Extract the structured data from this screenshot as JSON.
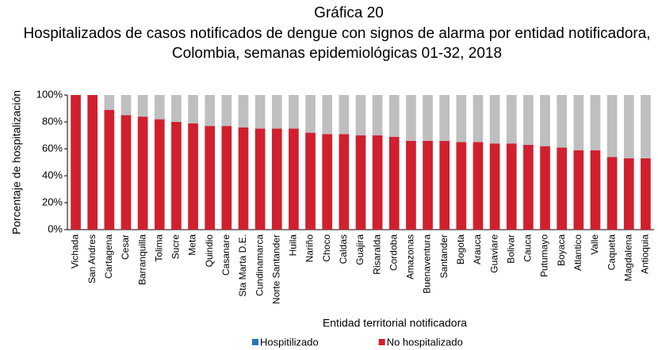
{
  "chart_data": {
    "type": "stacked_bar",
    "title": "Gráfica 20",
    "subtitle": "Hospitalizados de casos notificados de dengue con signos de alarma por entidad notificadora, Colombia, semanas epidemiológicas 01-32, 2018",
    "x_label": "Entidad territorial notificadora",
    "y_label": "Porcentaje de hospitalización",
    "categories": [
      "Vichada",
      "San Andres",
      "Cartagena",
      "Cesar",
      "Barranquilla",
      "Tolima",
      "Sucre",
      "Meta",
      "Quindio",
      "Casanare",
      "Sta Marta D.E.",
      "Cundinamarca",
      "Norte Santander",
      "Huila",
      "Nariño",
      "Choco",
      "Caldas",
      "Guajira",
      "Risaralda",
      "Cordoba",
      "Amazonas",
      "Buenaventura",
      "Santander",
      "Bogota",
      "Arauca",
      "Guaviare",
      "Bolivar",
      "Cauca",
      "Putumayo",
      "Boyaca",
      "Atlantico",
      "Valle",
      "Caqueta",
      "Magdalena",
      "Antioquia"
    ],
    "series": [
      {
        "name": "Hospitilizado",
        "color": "#bfbfbf",
        "legend_color": "#2e75b6",
        "values": [
          0,
          0,
          11,
          15,
          16,
          18,
          20,
          21,
          23,
          23,
          24,
          25,
          25,
          25,
          28,
          29,
          29,
          30,
          30,
          31,
          34,
          34,
          34,
          35,
          35,
          36,
          36,
          37,
          38,
          39,
          41,
          41,
          46,
          47,
          47
        ]
      },
      {
        "name": "No hospitalizado",
        "color": "#d0202e",
        "legend_color": "#d0202e",
        "values": [
          100,
          100,
          89,
          85,
          84,
          82,
          80,
          79,
          77,
          77,
          76,
          75,
          75,
          75,
          72,
          71,
          71,
          70,
          70,
          69,
          66,
          66,
          66,
          65,
          65,
          64,
          64,
          63,
          62,
          61,
          59,
          59,
          54,
          53,
          53
        ]
      }
    ],
    "ylim": [
      0,
      100
    ],
    "yticks": [
      {
        "value": 0,
        "label": "0%"
      },
      {
        "value": 20,
        "label": "20%"
      },
      {
        "value": 40,
        "label": "40%"
      },
      {
        "value": 60,
        "label": "60%"
      },
      {
        "value": 80,
        "label": "80%"
      },
      {
        "value": 100,
        "label": "100%"
      }
    ],
    "grid": false
  }
}
